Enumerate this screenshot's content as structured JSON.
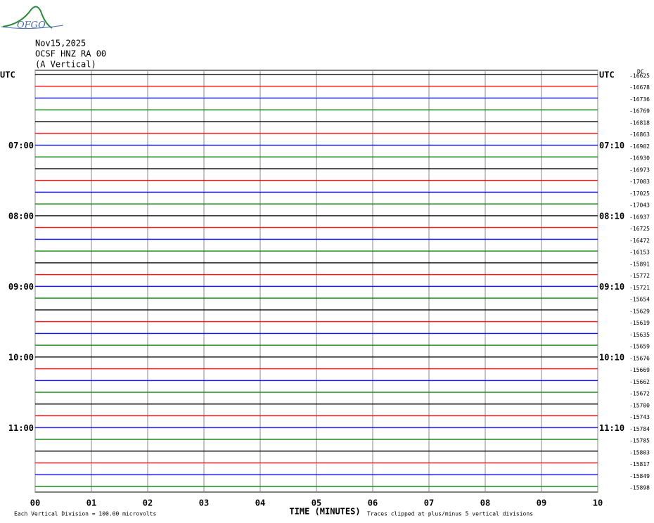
{
  "chart_data": {
    "type": "helicorder",
    "logo": "OFGO",
    "title_lines": [
      "Nov15,2025",
      "OCSF HNZ RA 00",
      "(A Vertical)"
    ],
    "dc_header": "DC",
    "left_labels": [
      "UTC",
      null,
      null,
      null,
      null,
      null,
      "07:00",
      null,
      null,
      null,
      null,
      null,
      "08:00",
      null,
      null,
      null,
      null,
      null,
      "09:00",
      null,
      null,
      null,
      null,
      null,
      "10:00",
      null,
      null,
      null,
      null,
      null,
      "11:00",
      null,
      null,
      null,
      null,
      null
    ],
    "right_labels": [
      "UTC",
      null,
      null,
      null,
      null,
      null,
      "07:10",
      null,
      null,
      null,
      null,
      null,
      "08:10",
      null,
      null,
      null,
      null,
      null,
      "09:10",
      null,
      null,
      null,
      null,
      null,
      "10:10",
      null,
      null,
      null,
      null,
      null,
      "11:10",
      null,
      null,
      null,
      null,
      null
    ],
    "dc": [
      -16625,
      -16678,
      -16736,
      -16769,
      -16818,
      -16863,
      -16902,
      -16930,
      -16973,
      -17003,
      -17025,
      -17043,
      -16937,
      -16725,
      -16472,
      -16153,
      -15891,
      -15772,
      -15721,
      -15654,
      -15629,
      -15619,
      -15635,
      -15659,
      -15676,
      -15669,
      -15662,
      -15672,
      -15700,
      -15743,
      -15784,
      -15785,
      -15803,
      -15817,
      -15849,
      -15898
    ],
    "colors": [
      "#000000",
      "#ff0000",
      "#0000ff",
      "#008000"
    ],
    "xlim": [
      0,
      10
    ],
    "xticks": [
      {
        "value": 0,
        "label": "00"
      },
      {
        "value": 1,
        "label": "01"
      },
      {
        "value": 2,
        "label": "02"
      },
      {
        "value": 3,
        "label": "03"
      },
      {
        "value": 4,
        "label": "04"
      },
      {
        "value": 5,
        "label": "05"
      },
      {
        "value": 6,
        "label": "06"
      },
      {
        "value": 7,
        "label": "07"
      },
      {
        "value": 8,
        "label": "08"
      },
      {
        "value": 9,
        "label": "09"
      },
      {
        "value": 10,
        "label": "10"
      }
    ],
    "xlabel": "TIME (MINUTES)",
    "scale_note": "Each Vertical Division =  100.00 microvolts",
    "clip_note": "Traces clipped at plus/minus 5 vertical divisions",
    "grid": true
  }
}
